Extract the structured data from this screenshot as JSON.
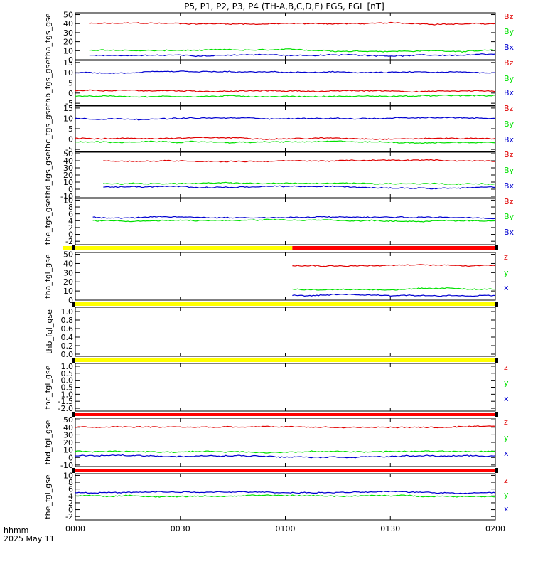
{
  "title": "P5, P1, P2, P3, P4 (TH-A,B,C,D,E) FGS, FGL [nT]",
  "footer": {
    "time_label": "hhmm",
    "date_label": "2025 May 11"
  },
  "x_tick_labels": [
    "0000",
    "0030",
    "0100",
    "0130",
    "0200"
  ],
  "colors": {
    "x": "#0000d0",
    "y": "#00e000",
    "z": "#e00000",
    "quality_good": "#ffff00",
    "quality_bad": "#ff0000"
  },
  "chart_data": [
    {
      "type": "line",
      "ylabel": "tha_fgs_gse",
      "yticks": [
        "0",
        "10",
        "20",
        "30",
        "40",
        "50"
      ],
      "ylim": [
        0,
        52
      ],
      "x": "00:04 - 02:00",
      "series": [
        {
          "name": "Bz",
          "level": 40
        },
        {
          "name": "By",
          "level": 10
        },
        {
          "name": "Bx",
          "level": 5
        }
      ]
    },
    {
      "type": "line",
      "ylabel": "thb_fgs_gse",
      "yticks": [
        "-5",
        "0",
        "5",
        "10",
        "15"
      ],
      "ylim": [
        -6,
        16
      ],
      "x": "00:00 - 02:00",
      "series": [
        {
          "name": "Bz",
          "level": 1
        },
        {
          "name": "By",
          "level": -1.5
        },
        {
          "name": "Bx",
          "level": 10
        }
      ]
    },
    {
      "type": "line",
      "ylabel": "thc_fgs_gse",
      "yticks": [
        "-5",
        "0",
        "5",
        "10",
        "15"
      ],
      "ylim": [
        -6,
        16
      ],
      "x": "00:00 - 02:00",
      "series": [
        {
          "name": "Bz",
          "level": 0.5
        },
        {
          "name": "By",
          "level": -1.5
        },
        {
          "name": "Bx",
          "level": 10
        }
      ]
    },
    {
      "type": "line",
      "ylabel": "thd_fgs_gse",
      "yticks": [
        "-10",
        "0",
        "10",
        "20",
        "30",
        "40",
        "50"
      ],
      "ylim": [
        -12,
        52
      ],
      "x": "00:08 - 02:00",
      "series": [
        {
          "name": "Bz",
          "level": 40
        },
        {
          "name": "By",
          "level": 8
        },
        {
          "name": "Bx",
          "level": 3
        }
      ]
    },
    {
      "type": "line",
      "ylabel": "the_fgs_gse",
      "yticks": [
        "-2",
        "0",
        "2",
        "4",
        "6",
        "8",
        "10"
      ],
      "ylim": [
        -3,
        10.5
      ],
      "x": "00:05 - 02:00",
      "series": [
        {
          "name": "Bz",
          "level": null
        },
        {
          "name": "By",
          "level": 4
        },
        {
          "name": "Bx",
          "level": 5
        }
      ]
    },
    {
      "type": "line",
      "ylabel": "tha_fgl_gse",
      "yticks": [
        "0",
        "10",
        "20",
        "30",
        "40",
        "50"
      ],
      "ylim": [
        0,
        52
      ],
      "x": "01:02 - 02:00",
      "series": [
        {
          "name": "z",
          "level": 38
        },
        {
          "name": "y",
          "level": 12
        },
        {
          "name": "x",
          "level": 5
        }
      ]
    },
    {
      "type": "line",
      "ylabel": "thb_fgl_gse",
      "yticks": [
        "0.0",
        "0.2",
        "0.4",
        "0.6",
        "0.8",
        "1.0"
      ],
      "ylim": [
        -0.05,
        1.1
      ],
      "x": "",
      "series": []
    },
    {
      "type": "line",
      "ylabel": "thc_fgl_gse",
      "yticks": [
        "-2.0",
        "-1.5",
        "-1.0",
        "-0.5",
        "0.0",
        "0.5",
        "1.0"
      ],
      "ylim": [
        -2.2,
        1.2
      ],
      "x": "",
      "series": [
        {
          "name": "z",
          "level": null
        },
        {
          "name": "y",
          "level": null
        },
        {
          "name": "x",
          "level": null
        }
      ]
    },
    {
      "type": "line",
      "ylabel": "thd_fgl_gse",
      "yticks": [
        "-10",
        "0",
        "10",
        "20",
        "30",
        "40",
        "50"
      ],
      "ylim": [
        -12,
        52
      ],
      "x": "00:00 - 02:00",
      "series": [
        {
          "name": "z",
          "level": 40
        },
        {
          "name": "y",
          "level": 8
        },
        {
          "name": "x",
          "level": 2
        }
      ]
    },
    {
      "type": "line",
      "ylabel": "the_fgl_gse",
      "yticks": [
        "-2",
        "0",
        "2",
        "4",
        "6",
        "8",
        "10"
      ],
      "ylim": [
        -3,
        10.5
      ],
      "x": "00:00 - 02:00",
      "series": [
        {
          "name": "z",
          "level": null
        },
        {
          "name": "y",
          "level": 4
        },
        {
          "name": "x",
          "level": 5
        }
      ]
    }
  ],
  "quality_bars": [
    {
      "segments": [
        {
          "color": "yellow",
          "from": "00:00",
          "to": "01:02"
        },
        {
          "color": "red",
          "from": "01:02",
          "to": "02:00"
        }
      ]
    },
    {
      "segments": [
        {
          "color": "yellow",
          "from": "00:00",
          "to": "02:00"
        }
      ]
    },
    {
      "segments": [
        {
          "color": "yellow",
          "from": "00:00",
          "to": "02:00"
        }
      ]
    },
    {
      "segments": [
        {
          "color": "red",
          "from": "00:00",
          "to": "02:00"
        }
      ]
    },
    {
      "segments": [
        {
          "color": "red",
          "from": "00:00",
          "to": "02:00"
        }
      ]
    }
  ]
}
